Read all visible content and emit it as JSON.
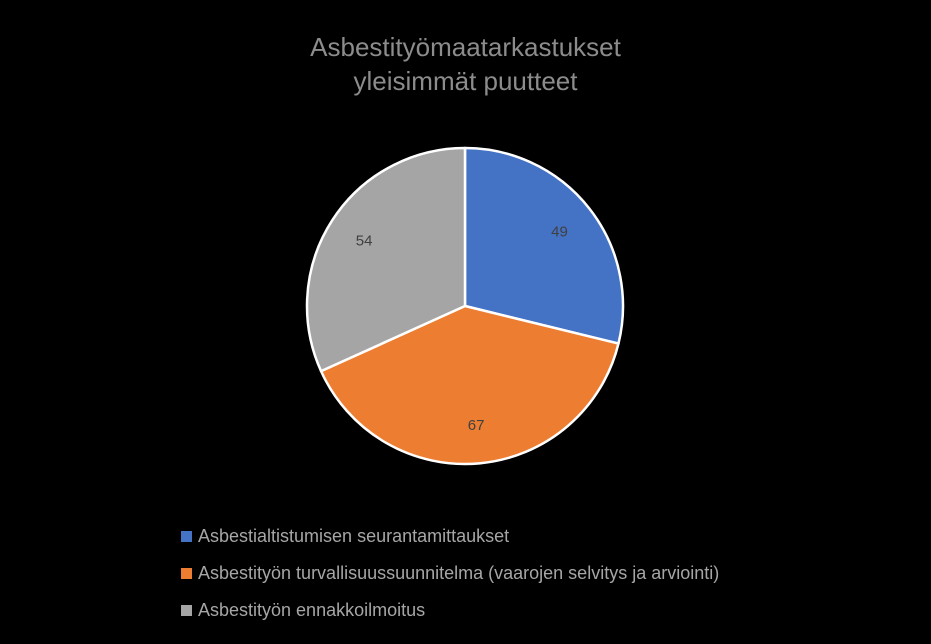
{
  "chart_data": {
    "type": "pie",
    "title": "Asbestityömaatarkastukset yleisimmät puutteet",
    "title_lines": [
      "Asbestityömaatarkastukset",
      "yleisimmät puutteet"
    ],
    "categories": [
      "Asbestialtistumisen seurantamittaukset",
      "Asbestityön turvallisuussuunnitelma (vaarojen selvitys ja arviointi)",
      "Asbestityön ennakkoilmoitus"
    ],
    "values": [
      49,
      67,
      54
    ],
    "colors": [
      "#4472c4",
      "#ed7d31",
      "#a5a5a5"
    ],
    "legend_position": "bottom",
    "data_labels": true
  },
  "colors": {
    "background": "#000000",
    "title": "#8c8c8c",
    "legend_text": "#a6a6a6",
    "data_label": "#404040",
    "slice_border": "#ffffff"
  }
}
